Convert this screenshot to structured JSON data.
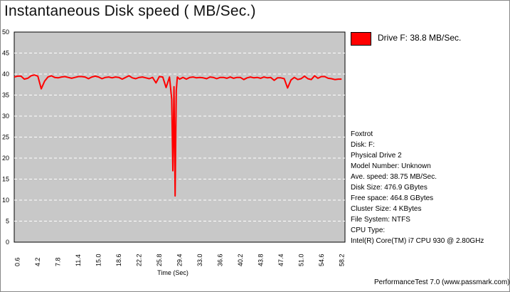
{
  "chart_data": {
    "type": "line",
    "title": "Instantaneous Disk speed ( MB/Sec.)",
    "xlabel": "Time (Sec)",
    "ylabel": "",
    "ylim": [
      0,
      50
    ],
    "xlim": [
      0,
      58.8
    ],
    "yticks": [
      "0",
      "5",
      "10",
      "15",
      "20",
      "25",
      "30",
      "35",
      "40",
      "45",
      "50"
    ],
    "xticks": [
      "0.6",
      "4.2",
      "7.8",
      "11.4",
      "15.0",
      "18.6",
      "22.2",
      "25.8",
      "29.4",
      "33.0",
      "36.6",
      "40.2",
      "43.8",
      "47.4",
      "51.0",
      "54.6",
      "58.2"
    ],
    "grid": "horizontal dashed",
    "legend_position": "top-right",
    "series": [
      {
        "name": "Drive F: 38.8 MB/Sec.",
        "color": "#ff0000",
        "x": [
          0.0,
          0.6,
          1.2,
          1.8,
          2.4,
          3.0,
          3.6,
          4.2,
          4.8,
          5.4,
          6.0,
          6.6,
          7.2,
          7.8,
          8.4,
          9.0,
          9.6,
          10.2,
          10.8,
          11.4,
          12.0,
          12.6,
          13.2,
          13.8,
          14.4,
          15.0,
          15.6,
          16.2,
          16.8,
          17.4,
          18.0,
          18.6,
          19.2,
          19.8,
          20.4,
          21.0,
          21.6,
          22.2,
          22.8,
          23.4,
          24.0,
          24.6,
          25.2,
          25.8,
          26.4,
          27.0,
          27.6,
          28.0,
          28.2,
          28.4,
          28.6,
          28.8,
          29.0,
          29.4,
          30.0,
          30.6,
          31.2,
          31.8,
          32.4,
          33.0,
          33.6,
          34.2,
          34.8,
          35.4,
          36.0,
          36.6,
          37.2,
          37.8,
          38.4,
          39.0,
          39.6,
          40.2,
          40.8,
          41.4,
          42.0,
          42.6,
          43.2,
          43.8,
          44.4,
          45.0,
          45.6,
          46.2,
          46.8,
          47.4,
          48.0,
          48.6,
          49.2,
          49.8,
          50.4,
          51.0,
          51.6,
          52.2,
          52.8,
          53.4,
          54.0,
          54.6,
          55.2,
          55.8,
          56.4,
          57.0,
          57.6,
          58.2
        ],
        "values": [
          39.3,
          39.5,
          39.5,
          38.8,
          39.0,
          39.6,
          39.8,
          39.5,
          36.5,
          38.3,
          39.3,
          39.6,
          39.2,
          39.1,
          39.3,
          39.4,
          39.2,
          39.0,
          39.2,
          39.4,
          39.4,
          39.3,
          38.9,
          39.3,
          39.5,
          39.3,
          38.9,
          39.2,
          39.3,
          39.1,
          39.3,
          39.2,
          38.8,
          39.2,
          39.6,
          39.1,
          38.9,
          39.2,
          39.3,
          39.1,
          38.9,
          39.2,
          37.9,
          39.4,
          39.3,
          36.8,
          39.3,
          34.0,
          17.0,
          37.0,
          11.0,
          36.0,
          39.3,
          38.8,
          39.2,
          38.8,
          39.2,
          39.3,
          39.1,
          39.2,
          39.1,
          38.9,
          39.3,
          39.2,
          38.9,
          39.2,
          39.2,
          39.0,
          39.3,
          39.0,
          39.2,
          39.2,
          38.7,
          39.1,
          39.3,
          39.1,
          39.2,
          39.0,
          39.3,
          39.1,
          39.2,
          38.5,
          39.1,
          39.1,
          38.9,
          36.7,
          38.6,
          39.2,
          38.7,
          38.9,
          39.5,
          38.9,
          38.7,
          39.6,
          39.0,
          39.4,
          39.4,
          39.0,
          38.9,
          38.7,
          38.8,
          38.8
        ]
      }
    ]
  },
  "info": {
    "lines": [
      "Foxtrot",
      "Disk: F:",
      "Physical Drive 2",
      "Model Number: Unknown",
      "Ave. speed: 38.75 MB/Sec.",
      "Disk Size: 476.9 GBytes",
      "Free space: 464.8 GBytes",
      "Cluster Size: 4 KBytes",
      "File System: NTFS",
      "CPU Type:",
      "Intel(R) Core(TM) i7 CPU 930 @ 2.80GHz"
    ]
  },
  "footer": "PerformanceTest 7.0 (www.passmark.com)",
  "colors": {
    "plot_background": "#c8c8c8",
    "grid": "#ffffff",
    "line": "#ff0000"
  }
}
